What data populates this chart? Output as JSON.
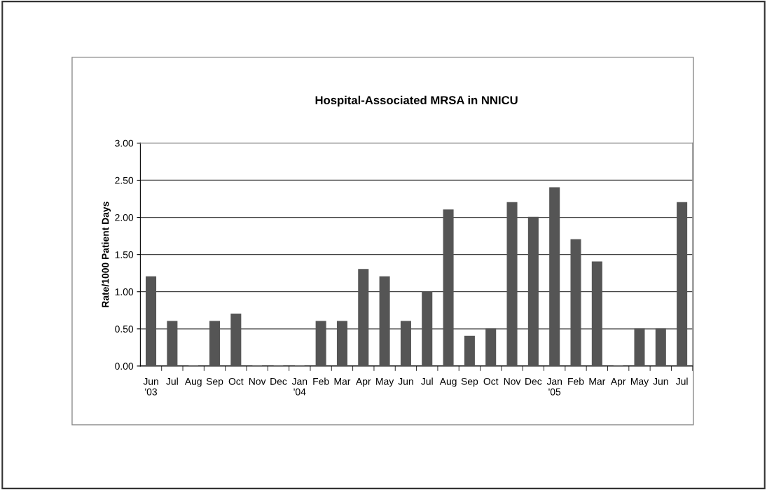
{
  "chart_data": {
    "type": "bar",
    "title": "Hospital-Associated MRSA in NNICU",
    "ylabel": "Rate/1000 Patient Days",
    "categories": [
      "Jun\n'03",
      "Jul",
      "Aug",
      "Sep",
      "Oct",
      "Nov",
      "Dec",
      "Jan\n'04",
      "Feb",
      "Mar",
      "Apr",
      "May",
      "Jun",
      "Jul",
      "Aug",
      "Sep",
      "Oct",
      "Nov",
      "Dec",
      "Jan\n'05",
      "Feb",
      "Mar",
      "Apr",
      "May",
      "Jun",
      "Jul"
    ],
    "values": [
      1.2,
      0.6,
      0,
      0.6,
      0.7,
      0,
      0,
      0,
      0.6,
      0.6,
      1.3,
      1.2,
      0.6,
      1.0,
      2.1,
      0.4,
      0.5,
      2.2,
      2.0,
      2.4,
      1.7,
      1.4,
      0,
      0.5,
      0.5,
      2.2
    ],
    "color": "#555555",
    "ylim": [
      0,
      3
    ],
    "yticks": [
      {
        "value": 0,
        "label": "0.00"
      },
      {
        "value": 0.5,
        "label": "0.50"
      },
      {
        "value": 1,
        "label": "1.00"
      },
      {
        "value": 1.5,
        "label": "1.50"
      },
      {
        "value": 2,
        "label": "2.00"
      },
      {
        "value": 2.5,
        "label": "2.50"
      },
      {
        "value": 3,
        "label": "3.00"
      }
    ],
    "grid": "y",
    "legend": false
  }
}
